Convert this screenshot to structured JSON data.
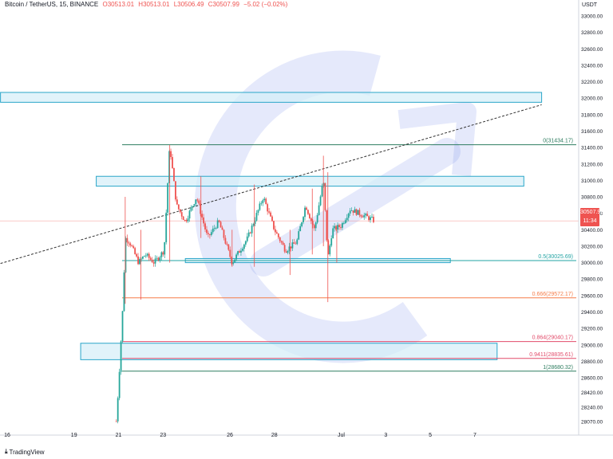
{
  "header": {
    "symbol": "Bitcoin / TetherUS, 15, BINANCE",
    "open": "O30513.01",
    "high": "H30513.01",
    "low": "L30506.49",
    "close": "C30507.99",
    "change": "−5.02 (−0.02%)"
  },
  "currency_label": "USDT",
  "last_price": {
    "value": "30507.99",
    "countdown": "11:34"
  },
  "footer": {
    "brand": "TradingView"
  },
  "colors": {
    "background": "#ffffff",
    "up": "#26a69a",
    "down": "#ef5350",
    "zone_stroke": "#2aa6c9",
    "zone_fill": "#d4eef8",
    "fib_green": "#2e7d60",
    "fib_teal": "#22a3a3",
    "fib_orange": "#f57c48",
    "fib_red": "#e24b6a",
    "watermark": "#6f86e8"
  },
  "chart_data": {
    "type": "candlestick",
    "series_points": [
      {
        "day": 20.9,
        "price": 28070
      },
      {
        "day": 21.0,
        "price": 28500
      },
      {
        "day": 21.1,
        "price": 29000
      },
      {
        "day": 21.2,
        "price": 29500
      },
      {
        "day": 21.3,
        "price": 30300
      },
      {
        "day": 21.5,
        "price": 30250
      },
      {
        "day": 21.9,
        "price": 30000
      },
      {
        "day": 22.2,
        "price": 30100
      },
      {
        "day": 22.6,
        "price": 30000
      },
      {
        "day": 23.05,
        "price": 30150
      },
      {
        "day": 23.3,
        "price": 31430
      },
      {
        "day": 23.6,
        "price": 30700
      },
      {
        "day": 24.0,
        "price": 30500
      },
      {
        "day": 24.5,
        "price": 30800
      },
      {
        "day": 25.0,
        "price": 30300
      },
      {
        "day": 25.5,
        "price": 30500
      },
      {
        "day": 26.1,
        "price": 30000
      },
      {
        "day": 26.8,
        "price": 30300
      },
      {
        "day": 27.5,
        "price": 30800
      },
      {
        "day": 28.0,
        "price": 30400
      },
      {
        "day": 28.5,
        "price": 30150
      },
      {
        "day": 29.0,
        "price": 30250
      },
      {
        "day": 29.4,
        "price": 30700
      },
      {
        "day": 29.8,
        "price": 30400
      },
      {
        "day": 30.2,
        "price": 31000
      },
      {
        "day": 30.4,
        "price": 30050
      },
      {
        "day": 30.6,
        "price": 30400
      },
      {
        "day": 31.0,
        "price": 30450
      },
      {
        "day": 31.4,
        "price": 30650
      },
      {
        "day": 31.8,
        "price": 30600
      },
      {
        "day": 32.2,
        "price": 30550
      },
      {
        "day": 32.5,
        "price": 30508
      }
    ],
    "wicks": [
      {
        "day": 21.3,
        "low": 29500,
        "high": 30800
      },
      {
        "day": 22.0,
        "low": 29550,
        "high": 30400
      },
      {
        "day": 23.3,
        "low": 30000,
        "high": 31430
      },
      {
        "day": 24.7,
        "low": 30300,
        "high": 31050
      },
      {
        "day": 26.1,
        "low": 29950,
        "high": 30400
      },
      {
        "day": 27.1,
        "low": 29950,
        "high": 30950
      },
      {
        "day": 28.7,
        "low": 29850,
        "high": 30400
      },
      {
        "day": 29.7,
        "low": 30100,
        "high": 30900
      },
      {
        "day": 30.2,
        "low": 30200,
        "high": 31300
      },
      {
        "day": 30.4,
        "low": 29520,
        "high": 31100
      },
      {
        "day": 30.8,
        "low": 30000,
        "high": 30400
      }
    ],
    "y_ticks": [
      28070,
      28240,
      28420,
      28600,
      28800,
      29000,
      29200,
      29400,
      29600,
      29800,
      30000,
      30200,
      30400,
      30600,
      30800,
      31000,
      31200,
      31400,
      31600,
      31800,
      32000,
      32200,
      32400,
      32600,
      32800,
      33000
    ],
    "x_ticks": [
      {
        "day": 16,
        "label": "16"
      },
      {
        "day": 19,
        "label": "19"
      },
      {
        "day": 21,
        "label": "21"
      },
      {
        "day": 23,
        "label": "23"
      },
      {
        "day": 26,
        "label": "26"
      },
      {
        "day": 28,
        "label": "28"
      },
      {
        "day": 31,
        "label": "Jul"
      },
      {
        "day": 33,
        "label": "3"
      },
      {
        "day": 35,
        "label": "5"
      },
      {
        "day": 37,
        "label": "7"
      }
    ],
    "fib_levels": [
      {
        "label": "0(31434.17)",
        "price": 31434.17,
        "color": "#2e7d60"
      },
      {
        "label": "0.5(30025.69)",
        "price": 30025.69,
        "color": "#22a3a3"
      },
      {
        "label": "0.666(29572.17)",
        "price": 29572.17,
        "color": "#f57c48"
      },
      {
        "label": "0.864(29040.17)",
        "price": 29040.17,
        "color": "#e24b6a"
      },
      {
        "label": "0.9411(28835.61)",
        "price": 28835.61,
        "color": "#e24b6a"
      },
      {
        "label": "1(28680.32)",
        "price": 28680.32,
        "color": "#2e7d60"
      }
    ],
    "zones": [
      {
        "day_start": 15.7,
        "day_end": 40.0,
        "price_low": 31950,
        "price_high": 32070
      },
      {
        "day_start": 20.0,
        "day_end": 39.2,
        "price_low": 30930,
        "price_high": 31050
      },
      {
        "day_start": 24.0,
        "day_end": 35.9,
        "price_low": 30000,
        "price_high": 30050
      },
      {
        "day_start": 19.3,
        "day_end": 38.0,
        "price_low": 28820,
        "price_high": 29020
      }
    ],
    "trendline": {
      "start": {
        "day": 15.7,
        "price": 29990
      },
      "end": {
        "day": 40.0,
        "price": 31920
      }
    },
    "last_price_line": 30507.99
  }
}
